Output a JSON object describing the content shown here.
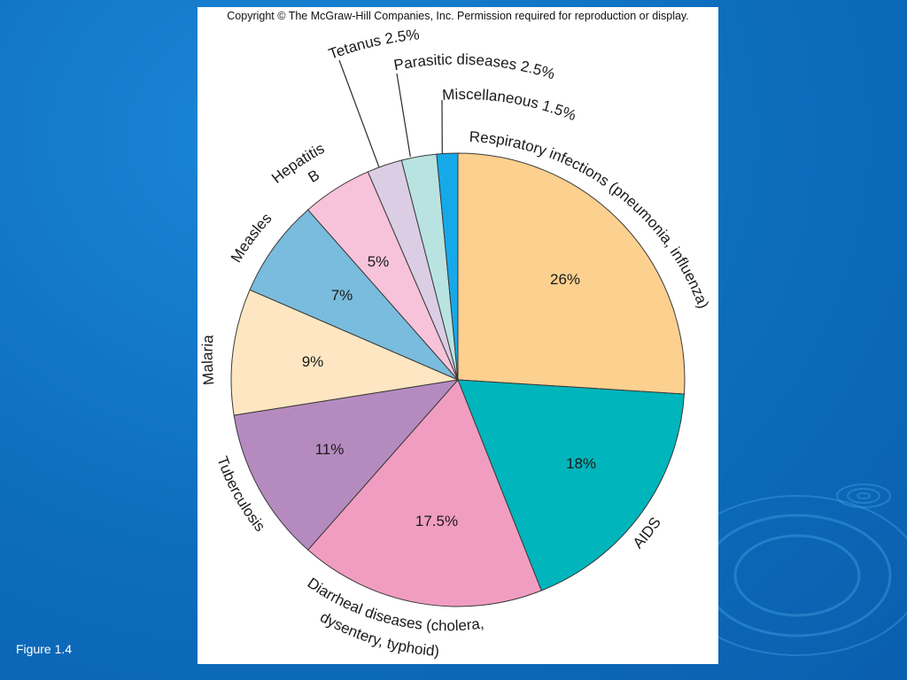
{
  "slide": {
    "caption": "Figure 1.4",
    "copyright": "Copyright © The McGraw-Hill Companies, Inc. Permission required for reproduction or display.",
    "background_color": "#0d6dbd"
  },
  "chart_data": {
    "type": "pie",
    "title": "",
    "start": "12 o'clock",
    "direction": "clockwise",
    "slices": [
      {
        "label": "Respiratory infections (pneumonia, influenza)",
        "value": 26,
        "value_label": "26%",
        "color": "#fcd08f"
      },
      {
        "label": "AIDS",
        "value": 18,
        "value_label": "18%",
        "color": "#00b5bb"
      },
      {
        "label": "Diarrheal diseases (cholera, dysentery, typhoid)",
        "value": 17.5,
        "value_label": "17.5%",
        "color": "#f19dc2"
      },
      {
        "label": "Tuberculosis",
        "value": 11,
        "value_label": "11%",
        "color": "#b58bbf"
      },
      {
        "label": "Malaria",
        "value": 9,
        "value_label": "9%",
        "color": "#fde6c1"
      },
      {
        "label": "Measles",
        "value": 7,
        "value_label": "7%",
        "color": "#79bcdd"
      },
      {
        "label": "Hepatitis B",
        "value": 5,
        "value_label": "5%",
        "color": "#f7c3da"
      },
      {
        "label": "Tetanus",
        "value": 2.5,
        "value_label": "2.5%",
        "color": "#dbcde4"
      },
      {
        "label": "Parasitic diseases",
        "value": 2.5,
        "value_label": "2.5%",
        "color": "#b9e3e1"
      },
      {
        "label": "Miscellaneous",
        "value": 1.5,
        "value_label": "1.5%",
        "color": "#16a9e9"
      }
    ],
    "category_labels": {
      "respiratory": "Respiratory infections (pneumonia, influenza)",
      "aids": "AIDS",
      "diarrheal_1": "Diarrheal diseases (cholera,",
      "diarrheal_2": "dysentery, typhoid)",
      "tuberculosis": "Tuberculosis",
      "malaria": "Malaria",
      "measles": "Measles",
      "hepatitis_1": "Hepatitis",
      "hepatitis_2": "B",
      "tetanus": "Tetanus 2.5%",
      "parasitic": "Parasitic diseases 2.5%",
      "misc": "Miscellaneous 1.5%"
    }
  }
}
